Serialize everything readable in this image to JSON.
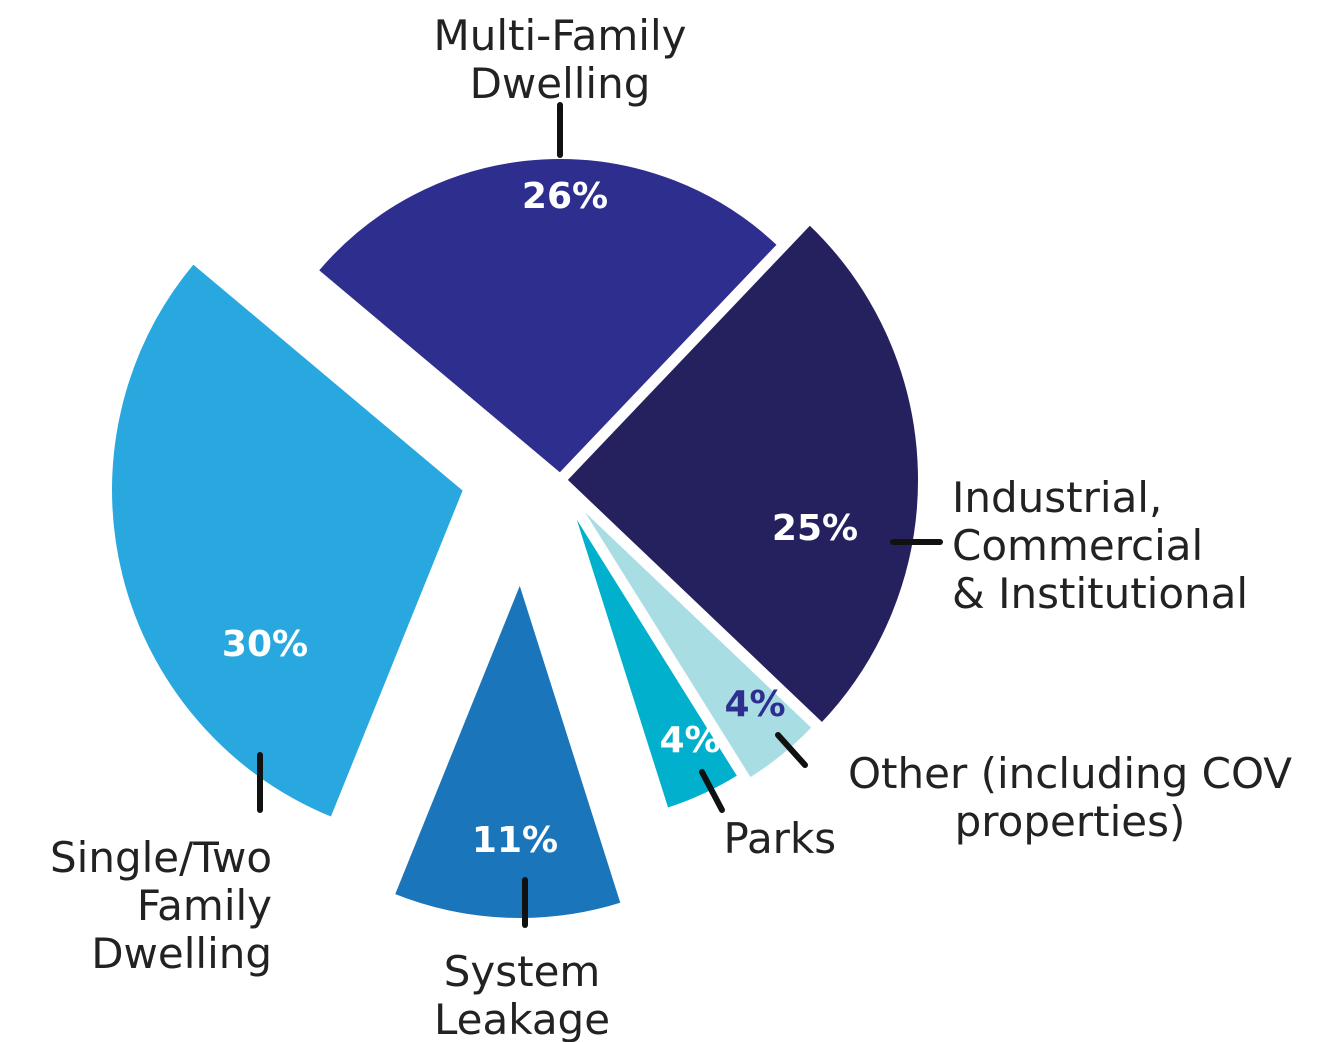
{
  "chart_data": {
    "type": "pie",
    "categories": [
      "Multi-Family\nDwelling",
      "Industrial,\nCommercial\n& Institutional",
      "Other (including COV\nproperties)",
      "Parks",
      "System\nLeakage",
      "Single/Two\nFamily\nDwelling"
    ],
    "values": [
      26,
      25,
      4,
      4,
      11,
      30
    ],
    "value_labels": [
      "26%",
      "25%",
      "4%",
      "4%",
      "11%",
      "30%"
    ],
    "colors": [
      "#2e2e8f",
      "#25215f",
      "#a9dde4",
      "#00b0cc",
      "#1b75bb",
      "#29a8e0"
    ]
  }
}
